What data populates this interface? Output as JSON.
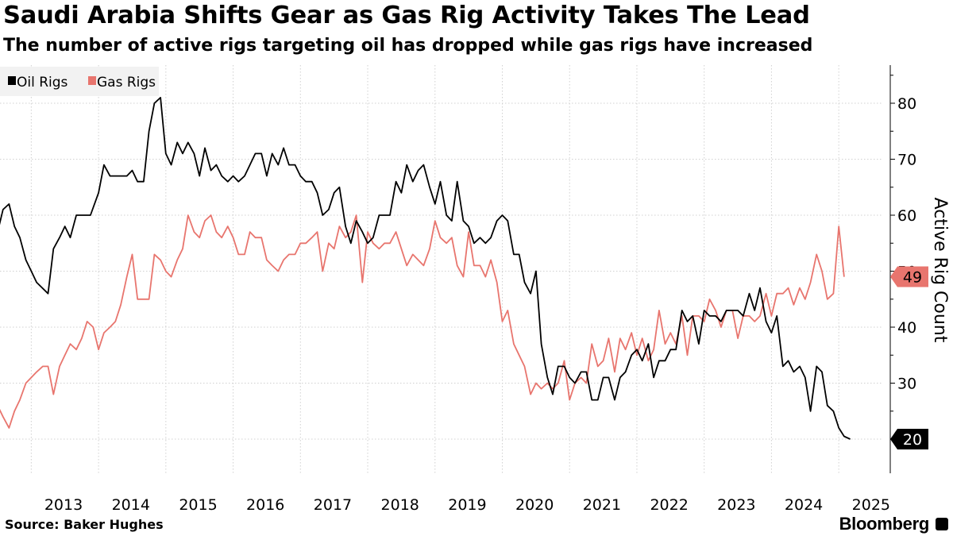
{
  "chart_data": {
    "type": "line",
    "title": "Saudi Arabia Shifts Gear as Gas Rig Activity Takes The Lead",
    "subtitle": "The number of active rigs targeting oil has dropped while gas rigs have increased",
    "ylabel": "Active Rig Count",
    "ylim": [
      15,
      87
    ],
    "xlim": [
      2012.5,
      2025.6
    ],
    "yticks": [
      30,
      40,
      50,
      60,
      70,
      80
    ],
    "xtick_labels": [
      "2013",
      "2014",
      "2015",
      "2016",
      "2017",
      "2018",
      "2019",
      "2020",
      "2021",
      "2022",
      "2023",
      "2024",
      "2025"
    ],
    "grid": true,
    "legend_position": "top-left",
    "series": [
      {
        "name": "Oil Rigs",
        "color": "#000000",
        "last_value_label": "20",
        "points": [
          [
            2012.5,
            57
          ],
          [
            2012.58,
            61
          ],
          [
            2012.67,
            62
          ],
          [
            2012.75,
            58
          ],
          [
            2012.83,
            56
          ],
          [
            2012.92,
            52
          ],
          [
            2013.0,
            50
          ],
          [
            2013.08,
            48
          ],
          [
            2013.25,
            46
          ],
          [
            2013.33,
            54
          ],
          [
            2013.42,
            56
          ],
          [
            2013.5,
            58
          ],
          [
            2013.58,
            56
          ],
          [
            2013.67,
            60
          ],
          [
            2013.75,
            60
          ],
          [
            2013.88,
            60
          ],
          [
            2014.0,
            64
          ],
          [
            2014.08,
            69
          ],
          [
            2014.17,
            67
          ],
          [
            2014.25,
            67
          ],
          [
            2014.33,
            67
          ],
          [
            2014.42,
            67
          ],
          [
            2014.5,
            68
          ],
          [
            2014.58,
            66
          ],
          [
            2014.67,
            66
          ],
          [
            2014.75,
            75
          ],
          [
            2014.83,
            80
          ],
          [
            2014.92,
            81
          ],
          [
            2015.0,
            71
          ],
          [
            2015.08,
            69
          ],
          [
            2015.17,
            73
          ],
          [
            2015.25,
            71
          ],
          [
            2015.33,
            73
          ],
          [
            2015.42,
            71
          ],
          [
            2015.5,
            67
          ],
          [
            2015.58,
            72
          ],
          [
            2015.67,
            68
          ],
          [
            2015.75,
            69
          ],
          [
            2015.83,
            67
          ],
          [
            2015.92,
            66
          ],
          [
            2016.0,
            67
          ],
          [
            2016.08,
            66
          ],
          [
            2016.17,
            67
          ],
          [
            2016.25,
            69
          ],
          [
            2016.33,
            71
          ],
          [
            2016.42,
            71
          ],
          [
            2016.5,
            67
          ],
          [
            2016.58,
            71
          ],
          [
            2016.67,
            69
          ],
          [
            2016.75,
            72
          ],
          [
            2016.83,
            69
          ],
          [
            2016.92,
            69
          ],
          [
            2017.0,
            67
          ],
          [
            2017.08,
            66
          ],
          [
            2017.17,
            66
          ],
          [
            2017.25,
            64
          ],
          [
            2017.33,
            60
          ],
          [
            2017.42,
            61
          ],
          [
            2017.5,
            64
          ],
          [
            2017.58,
            65
          ],
          [
            2017.67,
            58
          ],
          [
            2017.75,
            55
          ],
          [
            2017.83,
            59
          ],
          [
            2017.92,
            57
          ],
          [
            2018.0,
            55
          ],
          [
            2018.08,
            56
          ],
          [
            2018.17,
            60
          ],
          [
            2018.25,
            60
          ],
          [
            2018.33,
            60
          ],
          [
            2018.42,
            66
          ],
          [
            2018.5,
            64
          ],
          [
            2018.58,
            69
          ],
          [
            2018.67,
            66
          ],
          [
            2018.75,
            68
          ],
          [
            2018.83,
            69
          ],
          [
            2018.92,
            65
          ],
          [
            2019.0,
            62
          ],
          [
            2019.08,
            66
          ],
          [
            2019.17,
            60
          ],
          [
            2019.25,
            59
          ],
          [
            2019.33,
            66
          ],
          [
            2019.42,
            59
          ],
          [
            2019.5,
            58
          ],
          [
            2019.58,
            55
          ],
          [
            2019.67,
            56
          ],
          [
            2019.75,
            55
          ],
          [
            2019.83,
            56
          ],
          [
            2019.92,
            59
          ],
          [
            2020.0,
            60
          ],
          [
            2020.08,
            59
          ],
          [
            2020.17,
            53
          ],
          [
            2020.25,
            53
          ],
          [
            2020.33,
            48
          ],
          [
            2020.42,
            46
          ],
          [
            2020.5,
            50
          ],
          [
            2020.58,
            37
          ],
          [
            2020.67,
            31
          ],
          [
            2020.75,
            28
          ],
          [
            2020.83,
            33
          ],
          [
            2020.92,
            33
          ],
          [
            2021.0,
            31
          ],
          [
            2021.08,
            30
          ],
          [
            2021.17,
            32
          ],
          [
            2021.25,
            32
          ],
          [
            2021.33,
            27
          ],
          [
            2021.42,
            27
          ],
          [
            2021.5,
            31
          ],
          [
            2021.58,
            31
          ],
          [
            2021.67,
            27
          ],
          [
            2021.75,
            31
          ],
          [
            2021.83,
            32
          ],
          [
            2021.92,
            35
          ],
          [
            2022.0,
            36
          ],
          [
            2022.08,
            34
          ],
          [
            2022.17,
            37
          ],
          [
            2022.25,
            31
          ],
          [
            2022.33,
            34
          ],
          [
            2022.42,
            34
          ],
          [
            2022.5,
            36
          ],
          [
            2022.58,
            36
          ],
          [
            2022.67,
            43
          ],
          [
            2022.75,
            41
          ],
          [
            2022.83,
            42
          ],
          [
            2022.92,
            37
          ],
          [
            2023.0,
            43
          ],
          [
            2023.08,
            42
          ],
          [
            2023.17,
            42
          ],
          [
            2023.25,
            41
          ],
          [
            2023.33,
            43
          ],
          [
            2023.42,
            43
          ],
          [
            2023.5,
            43
          ],
          [
            2023.58,
            42
          ],
          [
            2023.67,
            46
          ],
          [
            2023.75,
            43
          ],
          [
            2023.83,
            47
          ],
          [
            2023.92,
            41
          ],
          [
            2024.0,
            39
          ],
          [
            2024.08,
            42
          ],
          [
            2024.17,
            33
          ],
          [
            2024.25,
            34
          ],
          [
            2024.33,
            32
          ],
          [
            2024.42,
            33
          ],
          [
            2024.5,
            31
          ],
          [
            2024.58,
            25
          ],
          [
            2024.67,
            33
          ],
          [
            2024.75,
            32
          ],
          [
            2024.83,
            26
          ],
          [
            2024.92,
            25
          ],
          [
            2025.0,
            22
          ],
          [
            2025.08,
            20.5
          ],
          [
            2025.17,
            20
          ]
        ]
      },
      {
        "name": "Gas Rigs",
        "color": "#e8756e",
        "last_value_label": "49",
        "points": [
          [
            2012.5,
            26
          ],
          [
            2012.58,
            24
          ],
          [
            2012.67,
            22
          ],
          [
            2012.75,
            25
          ],
          [
            2012.83,
            27
          ],
          [
            2012.92,
            30
          ],
          [
            2013.0,
            31
          ],
          [
            2013.08,
            32
          ],
          [
            2013.17,
            33
          ],
          [
            2013.25,
            33
          ],
          [
            2013.33,
            28
          ],
          [
            2013.42,
            33
          ],
          [
            2013.5,
            35
          ],
          [
            2013.58,
            37
          ],
          [
            2013.67,
            36
          ],
          [
            2013.75,
            38
          ],
          [
            2013.83,
            41
          ],
          [
            2013.92,
            40
          ],
          [
            2014.0,
            36
          ],
          [
            2014.08,
            39
          ],
          [
            2014.17,
            40
          ],
          [
            2014.25,
            41
          ],
          [
            2014.33,
            44
          ],
          [
            2014.42,
            49
          ],
          [
            2014.5,
            53
          ],
          [
            2014.58,
            45
          ],
          [
            2014.67,
            45
          ],
          [
            2014.75,
            45
          ],
          [
            2014.83,
            53
          ],
          [
            2014.92,
            52
          ],
          [
            2015.0,
            50
          ],
          [
            2015.08,
            49
          ],
          [
            2015.17,
            52
          ],
          [
            2015.25,
            54
          ],
          [
            2015.33,
            60
          ],
          [
            2015.42,
            57
          ],
          [
            2015.5,
            56
          ],
          [
            2015.58,
            59
          ],
          [
            2015.67,
            60
          ],
          [
            2015.75,
            57
          ],
          [
            2015.83,
            56
          ],
          [
            2015.92,
            58
          ],
          [
            2016.0,
            56
          ],
          [
            2016.08,
            53
          ],
          [
            2016.17,
            53
          ],
          [
            2016.25,
            57
          ],
          [
            2016.33,
            56
          ],
          [
            2016.42,
            56
          ],
          [
            2016.5,
            52
          ],
          [
            2016.58,
            51
          ],
          [
            2016.67,
            50
          ],
          [
            2016.75,
            52
          ],
          [
            2016.83,
            53
          ],
          [
            2016.92,
            53
          ],
          [
            2017.0,
            55
          ],
          [
            2017.08,
            55
          ],
          [
            2017.17,
            56
          ],
          [
            2017.25,
            57
          ],
          [
            2017.33,
            50
          ],
          [
            2017.42,
            55
          ],
          [
            2017.5,
            54
          ],
          [
            2017.58,
            58
          ],
          [
            2017.67,
            56
          ],
          [
            2017.75,
            57
          ],
          [
            2017.83,
            60
          ],
          [
            2017.92,
            48
          ],
          [
            2018.0,
            57
          ],
          [
            2018.08,
            55
          ],
          [
            2018.17,
            54
          ],
          [
            2018.25,
            55
          ],
          [
            2018.33,
            55
          ],
          [
            2018.42,
            57
          ],
          [
            2018.5,
            54
          ],
          [
            2018.58,
            51
          ],
          [
            2018.67,
            53
          ],
          [
            2018.75,
            52
          ],
          [
            2018.83,
            51
          ],
          [
            2018.92,
            54
          ],
          [
            2019.0,
            59
          ],
          [
            2019.08,
            56
          ],
          [
            2019.17,
            55
          ],
          [
            2019.25,
            56
          ],
          [
            2019.33,
            51
          ],
          [
            2019.42,
            49
          ],
          [
            2019.5,
            57
          ],
          [
            2019.58,
            51
          ],
          [
            2019.67,
            51
          ],
          [
            2019.75,
            49
          ],
          [
            2019.83,
            52
          ],
          [
            2019.92,
            48
          ],
          [
            2020.0,
            41
          ],
          [
            2020.08,
            43
          ],
          [
            2020.17,
            37
          ],
          [
            2020.25,
            35
          ],
          [
            2020.33,
            33
          ],
          [
            2020.42,
            28
          ],
          [
            2020.5,
            30
          ],
          [
            2020.58,
            29
          ],
          [
            2020.67,
            30
          ],
          [
            2020.75,
            29
          ],
          [
            2020.83,
            30
          ],
          [
            2020.92,
            34
          ],
          [
            2021.0,
            27
          ],
          [
            2021.08,
            30
          ],
          [
            2021.17,
            31
          ],
          [
            2021.25,
            30
          ],
          [
            2021.33,
            37
          ],
          [
            2021.42,
            33
          ],
          [
            2021.5,
            34
          ],
          [
            2021.58,
            38
          ],
          [
            2021.67,
            32
          ],
          [
            2021.75,
            38
          ],
          [
            2021.83,
            36
          ],
          [
            2021.92,
            39
          ],
          [
            2022.0,
            35
          ],
          [
            2022.08,
            38
          ],
          [
            2022.17,
            34
          ],
          [
            2022.25,
            36
          ],
          [
            2022.33,
            43
          ],
          [
            2022.42,
            37
          ],
          [
            2022.5,
            39
          ],
          [
            2022.58,
            37
          ],
          [
            2022.67,
            42
          ],
          [
            2022.75,
            35
          ],
          [
            2022.83,
            42
          ],
          [
            2022.92,
            42
          ],
          [
            2023.0,
            41
          ],
          [
            2023.08,
            45
          ],
          [
            2023.17,
            43
          ],
          [
            2023.25,
            40
          ],
          [
            2023.33,
            43
          ],
          [
            2023.42,
            43
          ],
          [
            2023.5,
            38
          ],
          [
            2023.58,
            42
          ],
          [
            2023.67,
            42
          ],
          [
            2023.75,
            41
          ],
          [
            2023.83,
            42
          ],
          [
            2023.92,
            46
          ],
          [
            2024.0,
            42
          ],
          [
            2024.08,
            46
          ],
          [
            2024.17,
            46
          ],
          [
            2024.25,
            47
          ],
          [
            2024.33,
            44
          ],
          [
            2024.42,
            47
          ],
          [
            2024.5,
            45
          ],
          [
            2024.58,
            48
          ],
          [
            2024.67,
            53
          ],
          [
            2024.75,
            50
          ],
          [
            2024.83,
            45
          ],
          [
            2024.92,
            46
          ],
          [
            2025.0,
            58
          ],
          [
            2025.08,
            49
          ]
        ]
      }
    ]
  },
  "footer": {
    "source": "Source: Baker Hughes",
    "brand": "Bloomberg"
  }
}
